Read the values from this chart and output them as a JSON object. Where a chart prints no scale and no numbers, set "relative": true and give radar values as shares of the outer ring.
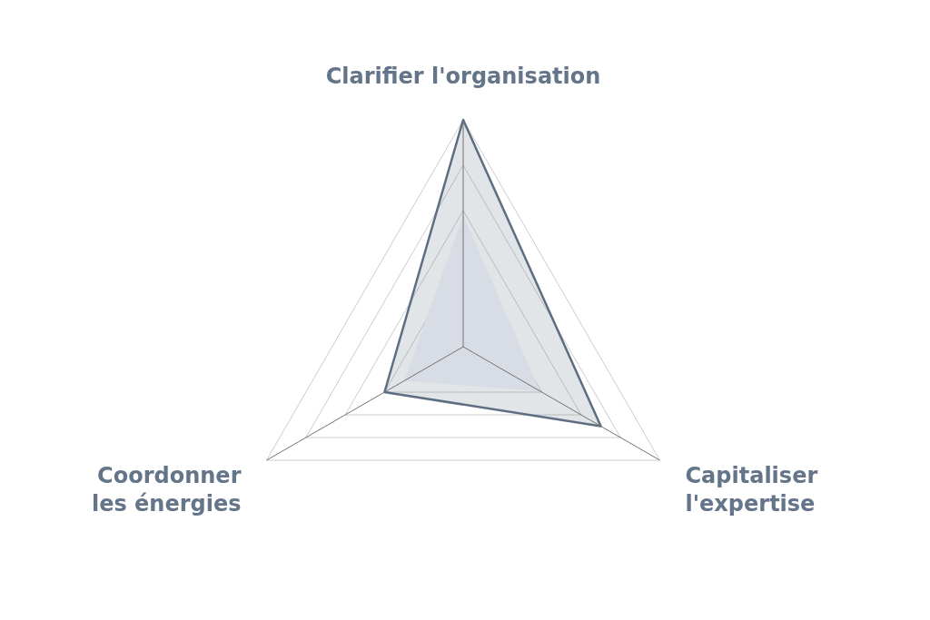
{
  "chart_data": {
    "type": "radar",
    "relative": true,
    "grid": true,
    "categories": [
      "Clarifier l'organisation",
      "Capitaliser l'expertise",
      "Coordonner les énergies"
    ],
    "series": [
      {
        "color": "#5d6e82",
        "values": [
          1,
          0.7,
          0.4
        ]
      },
      {
        "type": "area",
        "color": "#d8dce5",
        "values": [
          0.58,
          0.39,
          0.3
        ]
      }
    ]
  }
}
